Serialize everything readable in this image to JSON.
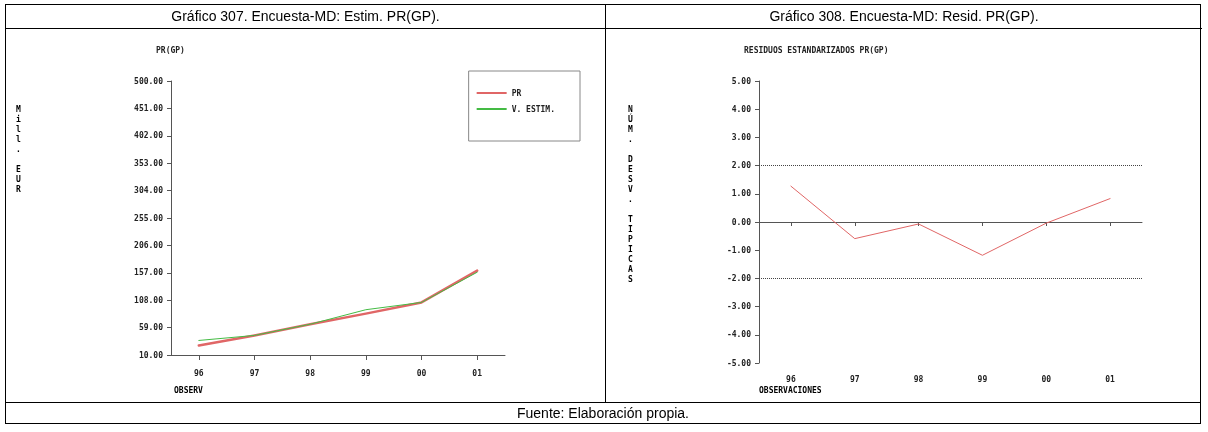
{
  "chart_data": [
    {
      "type": "line",
      "title": "Gráfico 307. Encuesta-MD: Estim. PR(GP).",
      "subtitle": "PR(GP)",
      "xlabel": "OBSERV",
      "ylabel": "Mill. EUR",
      "categories": [
        "96",
        "97",
        "98",
        "99",
        "00",
        "01"
      ],
      "series": [
        {
          "name": "PR",
          "color": "#e06666",
          "values": [
            27,
            45,
            65,
            84,
            104,
            161
          ]
        },
        {
          "name": "V. ESTIM.",
          "color": "#44bb44",
          "values": [
            36,
            45,
            65,
            91,
            104,
            158
          ]
        }
      ],
      "ylim": [
        10,
        500
      ],
      "yticks": [
        {
          "value": 10,
          "label": "10.00"
        },
        {
          "value": 59,
          "label": "59.00"
        },
        {
          "value": 108,
          "label": "108.00"
        },
        {
          "value": 157,
          "label": "157.00"
        },
        {
          "value": 206,
          "label": "206.00"
        },
        {
          "value": 255,
          "label": "255.00"
        },
        {
          "value": 304,
          "label": "304.00"
        },
        {
          "value": 353,
          "label": "353.00"
        },
        {
          "value": 402,
          "label": "402.00"
        },
        {
          "value": 451,
          "label": "451.00"
        },
        {
          "value": 500,
          "label": "500.00"
        }
      ],
      "legend": "top right",
      "marker": "none",
      "line_style": "solid",
      "annotations": [
        "Fuente: Elaboración propia."
      ]
    },
    {
      "type": "line",
      "title": "Gráfico 308. Encuesta-MD: Resid. PR(GP).",
      "subtitle": "RESIDUOS ESTANDARIZADOS PR(GP)",
      "xlabel": "OBSERVACIONES",
      "ylabel": "NÚM. DESV. TIPICAS",
      "categories": [
        "96",
        "97",
        "98",
        "99",
        "00",
        "01"
      ],
      "series": [
        {
          "color": "#e06666",
          "values": [
            1.27,
            -0.59,
            -0.07,
            -1.18,
            -0.04,
            0.83
          ]
        }
      ],
      "ylim": [
        -5,
        5
      ],
      "yticks": [
        {
          "value": -5,
          "label": "-5.00"
        },
        {
          "value": -4,
          "label": "-4.00"
        },
        {
          "value": -3,
          "label": "-3.00"
        },
        {
          "value": -2,
          "label": "-2.00"
        },
        {
          "value": -1,
          "label": "-1.00"
        },
        {
          "value": 0,
          "label": "0.00"
        },
        {
          "value": 1,
          "label": "1.00"
        },
        {
          "value": 2,
          "label": "2.00"
        },
        {
          "value": 3,
          "label": "3.00"
        },
        {
          "value": 4,
          "label": "4.00"
        },
        {
          "value": 5,
          "label": "5.00"
        }
      ],
      "marker": "none",
      "line_style": "solid",
      "ref_lines": [
        {
          "axis": "y",
          "value": 2,
          "color": "#444444",
          "line_style": "dotted"
        },
        {
          "axis": "y",
          "value": -2,
          "color": "#444444",
          "line_style": "dotted"
        }
      ]
    }
  ]
}
